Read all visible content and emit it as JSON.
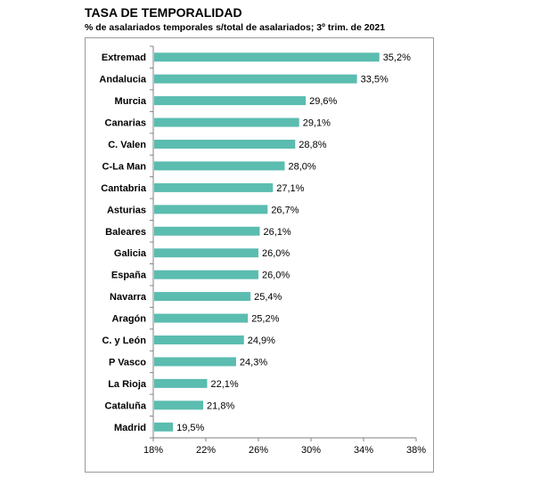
{
  "title": "TASA DE TEMPORALIDAD",
  "subtitle": "% de asalariados temporales s/total de asalariados; 3º trim. de 2021",
  "chart_data": {
    "type": "bar",
    "orientation": "horizontal",
    "categories": [
      "Extremad",
      "Andalucia",
      "Murcia",
      "Canarias",
      "C. Valen",
      "C-La Man",
      "Cantabria",
      "Asturias",
      "Baleares",
      "Galicia",
      "España",
      "Navarra",
      "Aragón",
      "C. y León",
      "P Vasco",
      "La Rioja",
      "Cataluña",
      "Madrid"
    ],
    "values": [
      35.2,
      33.5,
      29.6,
      29.1,
      28.8,
      28.0,
      27.1,
      26.7,
      26.1,
      26.0,
      26.0,
      25.4,
      25.2,
      24.9,
      24.3,
      22.1,
      21.8,
      19.5
    ],
    "value_labels": [
      "35,2%",
      "33,5%",
      "29,6%",
      "29,1%",
      "28,8%",
      "28,0%",
      "27,1%",
      "26,7%",
      "26,1%",
      "26,0%",
      "26,0%",
      "25,4%",
      "25,2%",
      "24,9%",
      "24,3%",
      "22,1%",
      "21,8%",
      "19,5%"
    ],
    "xlim": [
      18,
      38
    ],
    "xticks": [
      18,
      22,
      26,
      30,
      34,
      38
    ],
    "xtick_labels": [
      "18%",
      "22%",
      "26%",
      "30%",
      "34%",
      "38%"
    ],
    "bar_color": "#5bbcb0",
    "grid": false,
    "legend": "none"
  }
}
